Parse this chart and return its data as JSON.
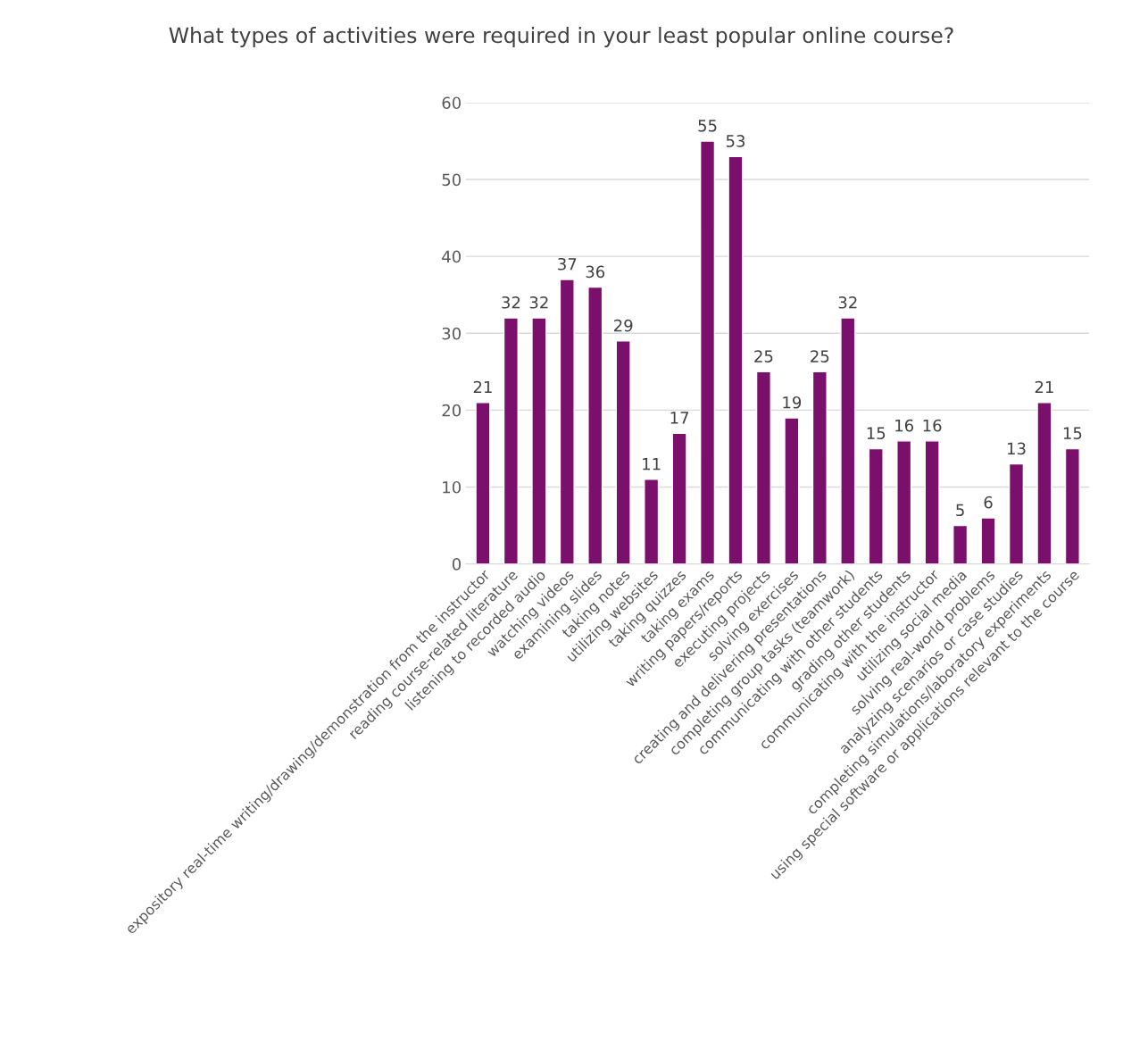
{
  "chart_data": {
    "type": "bar",
    "title": "What types of activities were required in your least popular online course?",
    "categories": [
      "expository real-time writing/drawing/demonstration from the instructor",
      "reading course-related literature",
      "listening to recorded audio",
      "watching videos",
      "examining slides",
      "taking notes",
      "utilizing websites",
      "taking quizzes",
      "taking exams",
      "writing papers/reports",
      "executing projects",
      "solving exercises",
      "creating and delivering presentations",
      "completing group tasks (teamwork)",
      "communicating with other students",
      "grading other students",
      "communicating with the instructor",
      "utilizing social media",
      "solving real-world problems",
      "analyzing scenarios or case studies",
      "completing simulations/laboratory experiments",
      "using special software or applications relevant to the course"
    ],
    "values": [
      21,
      32,
      32,
      37,
      36,
      29,
      11,
      17,
      55,
      53,
      25,
      19,
      25,
      32,
      15,
      16,
      16,
      5,
      6,
      13,
      21,
      15
    ],
    "color": "#7a0f6c",
    "ylim": [
      0,
      60
    ],
    "yticks": [
      0,
      10,
      20,
      30,
      40,
      50,
      60
    ],
    "grid": "y",
    "data_labels": true,
    "legend": false
  }
}
